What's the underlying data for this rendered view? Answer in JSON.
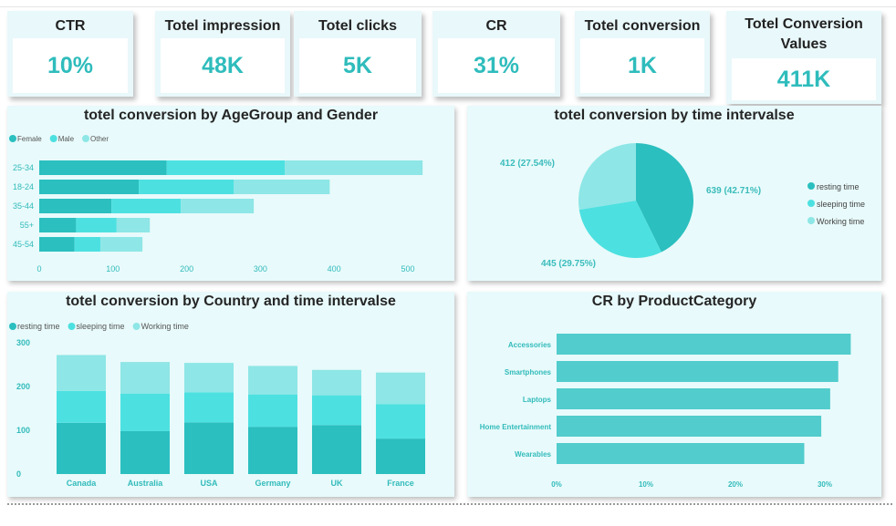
{
  "colors": {
    "accent": "#2fbcbc",
    "series1": "#2bbfbf",
    "series2": "#4de0e0",
    "series3": "#8ee6e6",
    "panel": "#e8fafb"
  },
  "kpis": [
    {
      "title": "CTR",
      "value": "10%"
    },
    {
      "title": "Totel impression",
      "value": "48K"
    },
    {
      "title": "Totel clicks",
      "value": "5K"
    },
    {
      "title": "CR",
      "value": "31%"
    },
    {
      "title": "Totel conversion",
      "value": "1K"
    },
    {
      "title": "Totel Conversion Values",
      "value": "411K"
    }
  ],
  "chart_data": [
    {
      "type": "bar",
      "orientation": "horizontal",
      "stacked": true,
      "title": "totel conversion by AgeGroup and Gender",
      "categories": [
        "25-34",
        "18-24",
        "35-44",
        "55+",
        "45-54"
      ],
      "series": [
        {
          "name": "Female",
          "values": [
            173,
            135,
            98,
            50,
            48
          ]
        },
        {
          "name": "Male",
          "values": [
            160,
            129,
            94,
            55,
            35
          ]
        },
        {
          "name": "Other",
          "values": [
            187,
            130,
            99,
            45,
            57
          ]
        }
      ],
      "xticks": [
        "0",
        "100",
        "200",
        "300",
        "400",
        "500"
      ],
      "xlim": [
        0,
        520
      ],
      "legend": "top-left"
    },
    {
      "type": "pie",
      "title": "totel conversion by time intervalse",
      "series": [
        {
          "name": "resting time",
          "value": 639,
          "label": "639 (42.71%)"
        },
        {
          "name": "sleeping time",
          "value": 445,
          "label": "445 (29.75%)"
        },
        {
          "name": "Working time",
          "value": 412,
          "label": "412 (27.54%)"
        }
      ],
      "legend": "right"
    },
    {
      "type": "bar",
      "orientation": "vertical",
      "stacked": true,
      "title": "totel conversion by Country and time intervalse",
      "categories": [
        "Canada",
        "Australia",
        "USA",
        "Germany",
        "UK",
        "France"
      ],
      "series": [
        {
          "name": "resting time",
          "values": [
            117,
            98,
            118,
            108,
            112,
            81
          ]
        },
        {
          "name": "sleeping time",
          "values": [
            73,
            86,
            69,
            74,
            68,
            79
          ]
        },
        {
          "name": "Working time",
          "values": [
            82,
            72,
            67,
            65,
            58,
            72
          ]
        }
      ],
      "yticks": [
        "0",
        "100",
        "200",
        "300"
      ],
      "ylim": [
        0,
        300
      ],
      "legend": "top-left"
    },
    {
      "type": "bar",
      "orientation": "horizontal",
      "title": "CR by ProductCategory",
      "categories": [
        "Accessories",
        "Smartphones",
        "Laptops",
        "Home Entertainment",
        "Wearables"
      ],
      "values": [
        32.9,
        31.5,
        30.6,
        29.6,
        27.7
      ],
      "xticks": [
        "0%",
        "10%",
        "20%",
        "30%"
      ],
      "xlim": [
        0,
        33
      ]
    }
  ]
}
